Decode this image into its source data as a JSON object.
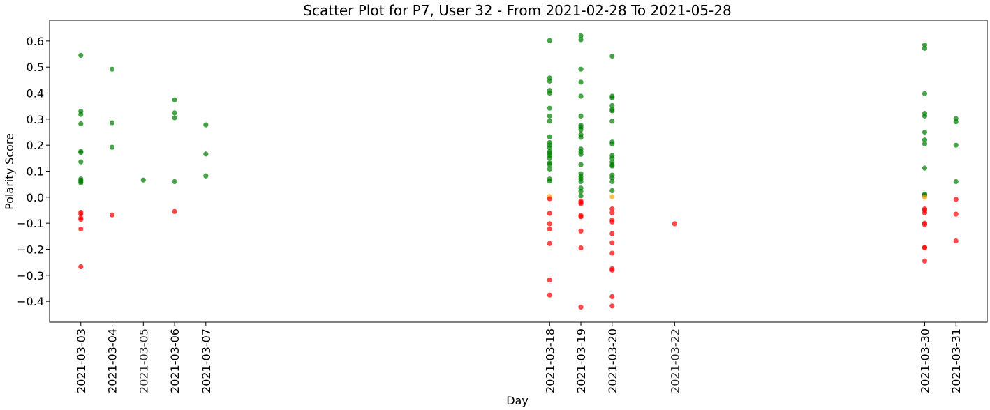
{
  "chart_data": {
    "type": "scatter",
    "title": "Scatter Plot for P7, User 32 - From 2021-02-28 To 2021-05-28",
    "xlabel": "Day",
    "ylabel": "Polarity Score",
    "ylim": [
      -0.48,
      0.68
    ],
    "yticks": [
      -0.4,
      -0.3,
      -0.2,
      -0.1,
      0.0,
      0.1,
      0.2,
      0.3,
      0.4,
      0.5,
      0.6
    ],
    "ytick_labels": [
      "−0.4",
      "−0.3",
      "−0.2",
      "−0.1",
      "0.0",
      "0.1",
      "0.2",
      "0.3",
      "0.4",
      "0.5",
      "0.6"
    ],
    "xlim": [
      "2021-03-02",
      "2021-04-01"
    ],
    "xticks": [
      "2021-03-03",
      "2021-03-04",
      "2021-03-05",
      "2021-03-06",
      "2021-03-07",
      "2021-03-18",
      "2021-03-19",
      "2021-03-20",
      "2021-03-22",
      "2021-03-30",
      "2021-03-31"
    ],
    "grid": false,
    "colors": {
      "positive": "#008000",
      "negative": "#ff0000",
      "neutral": "#ffa500"
    },
    "days": [
      {
        "date": "2021-03-03",
        "positive": [
          0.545,
          0.33,
          0.318,
          0.282,
          0.176,
          0.172,
          0.136,
          0.07,
          0.065,
          0.06,
          0.055
        ],
        "negative": [
          -0.058,
          -0.065,
          -0.08,
          -0.085,
          -0.122,
          -0.267
        ],
        "neutral": []
      },
      {
        "date": "2021-03-04",
        "positive": [
          0.492,
          0.286,
          0.192
        ],
        "negative": [
          -0.068
        ],
        "neutral": []
      },
      {
        "date": "2021-03-05",
        "positive": [
          0.066
        ],
        "negative": [],
        "neutral": []
      },
      {
        "date": "2021-03-06",
        "positive": [
          0.374,
          0.324,
          0.305,
          0.06
        ],
        "negative": [
          -0.055
        ],
        "neutral": []
      },
      {
        "date": "2021-03-07",
        "positive": [
          0.278,
          0.166,
          0.082
        ],
        "negative": [],
        "neutral": []
      },
      {
        "date": "2021-03-18",
        "positive": [
          0.602,
          0.458,
          0.446,
          0.41,
          0.4,
          0.342,
          0.312,
          0.292,
          0.232,
          0.21,
          0.2,
          0.19,
          0.175,
          0.168,
          0.16,
          0.15,
          0.132,
          0.125,
          0.108,
          0.07,
          0.062
        ],
        "negative": [
          -0.006,
          -0.062,
          -0.102,
          -0.122,
          -0.178,
          -0.318,
          -0.376
        ],
        "neutral": [
          0.003
        ]
      },
      {
        "date": "2021-03-19",
        "positive": [
          0.62,
          0.605,
          0.492,
          0.442,
          0.388,
          0.312,
          0.276,
          0.27,
          0.26,
          0.24,
          0.23,
          0.185,
          0.175,
          0.165,
          0.125,
          0.09,
          0.08,
          0.07,
          0.06,
          0.035,
          0.022,
          0.005
        ],
        "negative": [
          -0.015,
          -0.02,
          -0.025,
          -0.07,
          -0.075,
          -0.13,
          -0.195,
          -0.422
        ],
        "neutral": []
      },
      {
        "date": "2021-03-20",
        "positive": [
          0.542,
          0.388,
          0.382,
          0.352,
          0.338,
          0.332,
          0.292,
          0.212,
          0.205,
          0.16,
          0.15,
          0.135,
          0.125,
          0.12,
          0.085,
          0.075,
          0.06,
          0.025
        ],
        "negative": [
          -0.045,
          -0.06,
          -0.088,
          -0.095,
          -0.14,
          -0.175,
          -0.215,
          -0.275,
          -0.28,
          -0.382,
          -0.418
        ],
        "neutral": [
          0.002
        ]
      },
      {
        "date": "2021-03-22",
        "positive": [],
        "negative": [
          -0.102
        ],
        "neutral": []
      },
      {
        "date": "2021-03-30",
        "positive": [
          0.585,
          0.572,
          0.398,
          0.322,
          0.312,
          0.25,
          0.22,
          0.205,
          0.112,
          0.012,
          0.008
        ],
        "negative": [
          -0.045,
          -0.05,
          -0.06,
          -0.1,
          -0.105,
          -0.192,
          -0.195,
          -0.245
        ],
        "neutral": [
          0.0
        ]
      },
      {
        "date": "2021-03-31",
        "positive": [
          0.302,
          0.29,
          0.2,
          0.06
        ],
        "negative": [
          -0.008,
          -0.065,
          -0.168
        ],
        "neutral": []
      }
    ]
  }
}
